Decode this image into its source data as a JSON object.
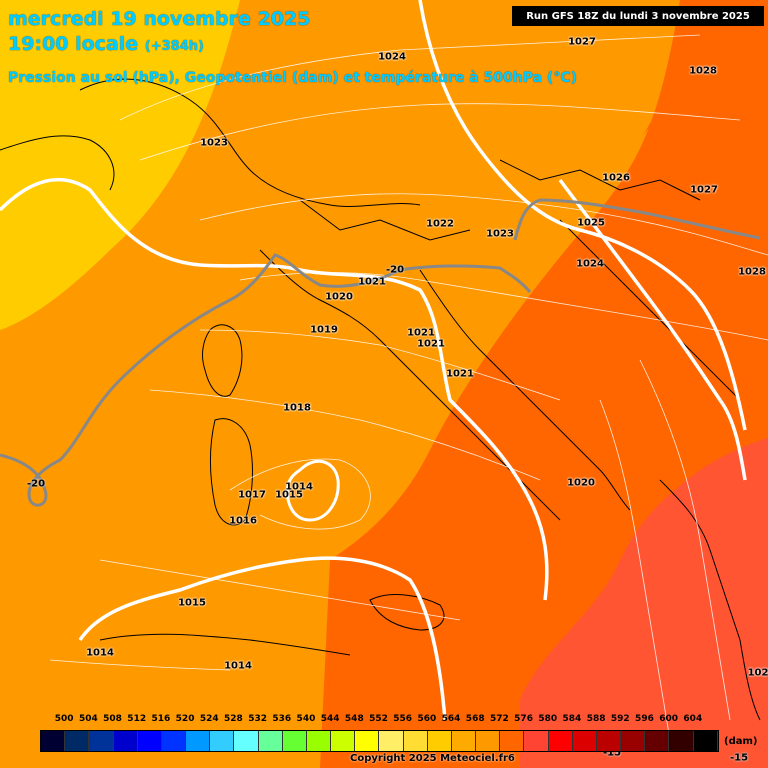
{
  "header": {
    "date_line": "mercredi 19 novembre 2025",
    "time_line": "19:00 locale",
    "time_offset": "(+384h)",
    "description": "Pression au sol (hPa), Geopotentiel (dam) et température à 500hPa (°C)",
    "run_info": "Run GFS 18Z du lundi 3 novembre 2025"
  },
  "pressure_labels": [
    {
      "text": "1024"
    },
    {
      "text": "1027"
    },
    {
      "text": "1028"
    },
    {
      "text": "1023"
    },
    {
      "text": "1026"
    },
    {
      "text": "1027"
    },
    {
      "text": "1022"
    },
    {
      "text": "1023"
    },
    {
      "text": "1025"
    },
    {
      "text": "1024"
    },
    {
      "text": "1028"
    },
    {
      "text": "1021"
    },
    {
      "text": "1020"
    },
    {
      "text": "1019"
    },
    {
      "text": "1021"
    },
    {
      "text": "1021"
    },
    {
      "text": "1021"
    },
    {
      "text": "1018"
    },
    {
      "text": "1014"
    },
    {
      "text": "1017"
    },
    {
      "text": "1015"
    },
    {
      "text": "1016"
    },
    {
      "text": "1020"
    },
    {
      "text": "1015"
    },
    {
      "text": "1014"
    },
    {
      "text": "1014"
    },
    {
      "text": "102"
    }
  ],
  "temperature_labels": [
    {
      "text": "-20"
    },
    {
      "text": "-20"
    },
    {
      "text": "-15"
    },
    {
      "text": "-15"
    }
  ],
  "legend": {
    "unit": "(dam)",
    "ticks": [
      "500",
      "504",
      "508",
      "512",
      "516",
      "520",
      "524",
      "528",
      "532",
      "536",
      "540",
      "544",
      "548",
      "552",
      "556",
      "560",
      "564",
      "568",
      "572",
      "576",
      "580",
      "584",
      "588",
      "592",
      "596",
      "600",
      "604"
    ],
    "colors": [
      "#000033",
      "#002a66",
      "#003399",
      "#0000cc",
      "#0000ff",
      "#0033ff",
      "#0099ff",
      "#33ccff",
      "#66ffff",
      "#66ff99",
      "#66ff33",
      "#99ff00",
      "#ccff00",
      "#ffff00",
      "#ffee66",
      "#ffdd33",
      "#ffcc00",
      "#ffaa00",
      "#ff9900",
      "#ff6600",
      "#ff4433",
      "#ff0000",
      "#dd0000",
      "#bb0000",
      "#990000",
      "#660000",
      "#330000",
      "#000000"
    ]
  },
  "copyright": "Copyright 2025 Meteociel.fr6"
}
